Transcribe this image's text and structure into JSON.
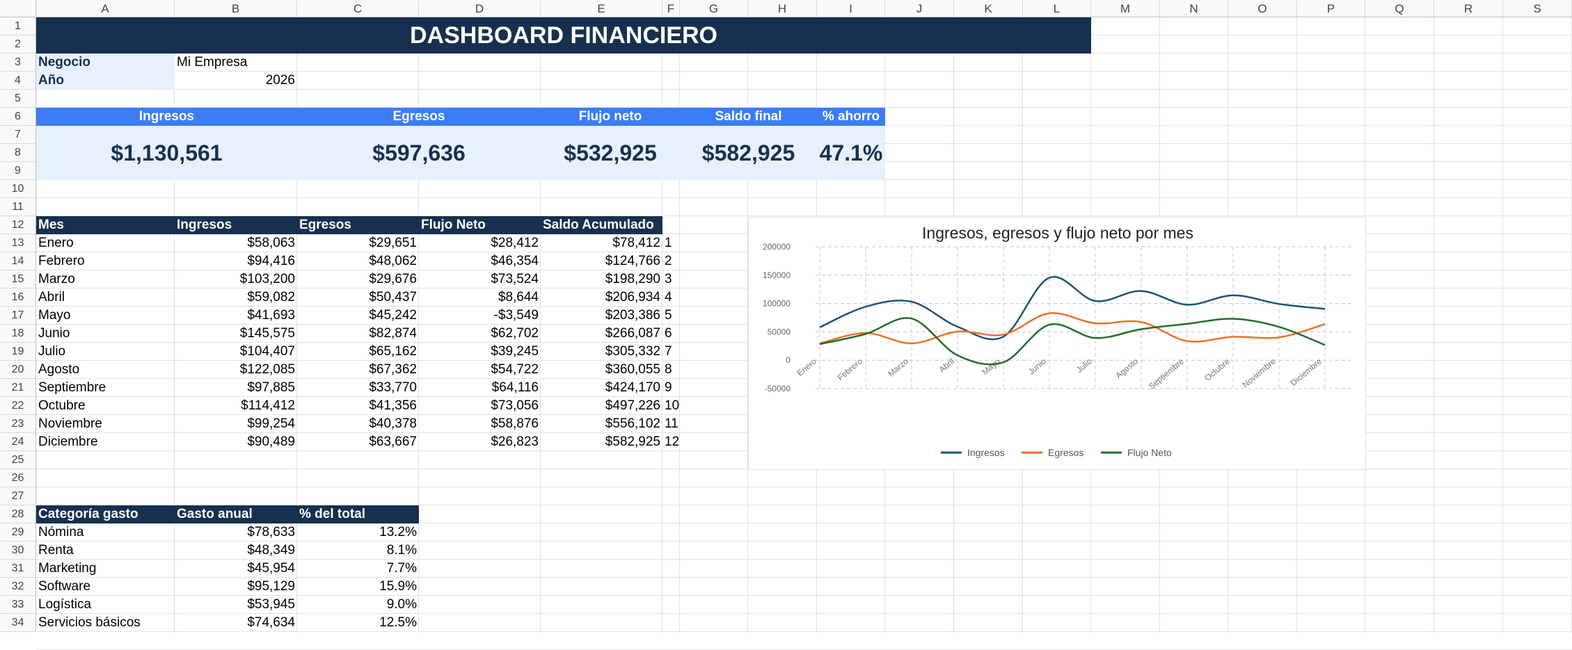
{
  "columns": [
    "A",
    "B",
    "C",
    "D",
    "E",
    "F",
    "G",
    "H",
    "I",
    "J",
    "K",
    "L",
    "M",
    "N",
    "O",
    "P",
    "Q",
    "R",
    "S"
  ],
  "rows": [
    "1",
    "2",
    "3",
    "4",
    "5",
    "6",
    "7",
    "8",
    "9",
    "10",
    "11",
    "12",
    "13",
    "14",
    "15",
    "16",
    "17",
    "18",
    "19",
    "20",
    "21",
    "22",
    "23",
    "24",
    "25",
    "26",
    "27",
    "28",
    "29",
    "30",
    "31",
    "32",
    "33",
    "34"
  ],
  "title": "DASHBOARD FINANCIERO",
  "info": {
    "business_label": "Negocio",
    "business_value": "Mi Empresa",
    "year_label": "Año",
    "year_value": "2026"
  },
  "kpis": [
    {
      "label": "Ingresos",
      "value": "$1,130,561"
    },
    {
      "label": "Egresos",
      "value": "$597,636"
    },
    {
      "label": "Flujo neto",
      "value": "$532,925"
    },
    {
      "label": "Saldo final",
      "value": "$582,925"
    },
    {
      "label": "% ahorro",
      "value": "47.1%"
    }
  ],
  "monthly": {
    "headers": [
      "Mes",
      "Ingresos",
      "Egresos",
      "Flujo Neto",
      "Saldo Acumulado"
    ],
    "rows": [
      [
        "Enero",
        "$58,063",
        "$29,651",
        "$28,412",
        "$78,412",
        "1"
      ],
      [
        "Febrero",
        "$94,416",
        "$48,062",
        "$46,354",
        "$124,766",
        "2"
      ],
      [
        "Marzo",
        "$103,200",
        "$29,676",
        "$73,524",
        "$198,290",
        "3"
      ],
      [
        "Abril",
        "$59,082",
        "$50,437",
        "$8,644",
        "$206,934",
        "4"
      ],
      [
        "Mayo",
        "$41,693",
        "$45,242",
        "-$3,549",
        "$203,386",
        "5"
      ],
      [
        "Junio",
        "$145,575",
        "$82,874",
        "$62,702",
        "$266,087",
        "6"
      ],
      [
        "Julio",
        "$104,407",
        "$65,162",
        "$39,245",
        "$305,332",
        "7"
      ],
      [
        "Agosto",
        "$122,085",
        "$67,362",
        "$54,722",
        "$360,055",
        "8"
      ],
      [
        "Septiembre",
        "$97,885",
        "$33,770",
        "$64,116",
        "$424,170",
        "9"
      ],
      [
        "Octubre",
        "$114,412",
        "$41,356",
        "$73,056",
        "$497,226",
        "10"
      ],
      [
        "Noviembre",
        "$99,254",
        "$40,378",
        "$58,876",
        "$556,102",
        "11"
      ],
      [
        "Diciembre",
        "$90,489",
        "$63,667",
        "$26,823",
        "$582,925",
        "12"
      ]
    ]
  },
  "categories": {
    "headers": [
      "Categoría gasto",
      "Gasto anual",
      "% del total"
    ],
    "rows": [
      [
        "Nómina",
        "$78,633",
        "13.2%"
      ],
      [
        "Renta",
        "$48,349",
        "8.1%"
      ],
      [
        "Marketing",
        "$45,954",
        "7.7%"
      ],
      [
        "Software",
        "$95,129",
        "15.9%"
      ],
      [
        "Logística",
        "$53,945",
        "9.0%"
      ],
      [
        "Servicios básicos",
        "$74,634",
        "12.5%"
      ]
    ]
  },
  "colors": {
    "title_bg": "#17304f",
    "kpi_header": "#3c7cf4",
    "kpi_body": "#e8f0fe",
    "info_label_bg": "#e8f0fe",
    "ingresos": "#1a5577",
    "egresos": "#e8722a",
    "flujo": "#216e2b"
  },
  "chart_data": {
    "type": "line",
    "title": "Ingresos, egresos y flujo neto por mes",
    "categories": [
      "Enero",
      "Febrero",
      "Marzo",
      "Abril",
      "Mayo",
      "Junio",
      "Julio",
      "Agosto",
      "Septiembre",
      "Octubre",
      "Noviembre",
      "Diciembre"
    ],
    "series": [
      {
        "name": "Ingresos",
        "values": [
          58063,
          94416,
          103200,
          59082,
          41693,
          145575,
          104407,
          122085,
          97885,
          114412,
          99254,
          90489
        ]
      },
      {
        "name": "Egresos",
        "values": [
          29651,
          48062,
          29676,
          50437,
          45242,
          82874,
          65162,
          67362,
          33770,
          41356,
          40378,
          63667
        ]
      },
      {
        "name": "Flujo Neto",
        "values": [
          28412,
          46354,
          73524,
          8644,
          -3549,
          62702,
          39245,
          54722,
          64116,
          73056,
          58876,
          26823
        ]
      }
    ],
    "yticks": [
      "200000",
      "150000",
      "100000",
      "50000",
      "0",
      "-50000"
    ],
    "ylim": [
      -50000,
      200000
    ],
    "grid": true,
    "legend": "bottom"
  }
}
